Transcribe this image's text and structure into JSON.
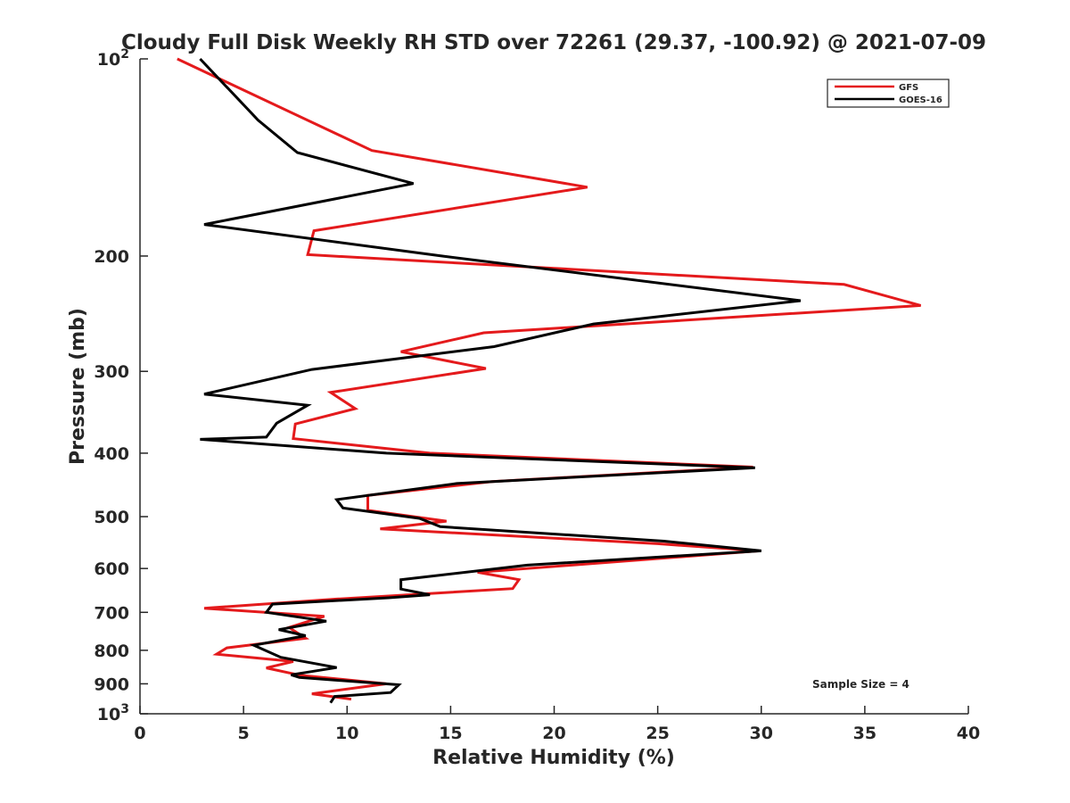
{
  "chart_data": {
    "type": "line",
    "title": "Cloudy Full Disk Weekly RH STD over 72261 (29.37, -100.92) @ 2021-07-09",
    "xlabel": "Relative Humidity (%)",
    "ylabel": "Pressure (mb)",
    "xlim": [
      0,
      40
    ],
    "ylim": [
      100,
      1000
    ],
    "y_scale": "log",
    "y_reversed": true,
    "grid": false,
    "legend_position": "top-right",
    "x_ticks": [
      0,
      5,
      10,
      15,
      20,
      25,
      30,
      35,
      40
    ],
    "y_ticks": [
      {
        "value": 100,
        "base": "10",
        "exp": "2"
      },
      {
        "value": 200,
        "label": "200"
      },
      {
        "value": 300,
        "label": "300"
      },
      {
        "value": 400,
        "label": "400"
      },
      {
        "value": 500,
        "label": "500"
      },
      {
        "value": 600,
        "label": "600"
      },
      {
        "value": 700,
        "label": "700"
      },
      {
        "value": 800,
        "label": "800"
      },
      {
        "value": 900,
        "label": "900"
      },
      {
        "value": 1000,
        "base": "10",
        "exp": "3"
      }
    ],
    "annotation": "Sample Size = 4",
    "series": [
      {
        "name": "GFS",
        "color": "#e41a1c",
        "x": [
          1.8,
          11.2,
          21.6,
          8.4,
          8.1,
          34.0,
          37.7,
          16.6,
          12.6,
          16.7,
          9.2,
          10.4,
          7.5,
          7.4,
          14.0,
          29.6,
          17.0,
          11.0,
          11.0,
          14.8,
          11.6,
          25.0,
          29.9,
          16.3,
          18.3,
          18.0,
          9.5,
          3.1,
          8.9,
          7.2,
          8.0,
          4.2,
          3.7,
          7.4,
          6.1,
          7.7,
          11.9,
          8.3,
          10.2
        ],
        "y": [
          100,
          138,
          157,
          183,
          199,
          221,
          238,
          262,
          280,
          297,
          323,
          342,
          361,
          380,
          400,
          420,
          442,
          464,
          489,
          508,
          522,
          550,
          564,
          608,
          624,
          644,
          668,
          690,
          710,
          738,
          767,
          793,
          811,
          832,
          851,
          873,
          900,
          932,
          950
        ]
      },
      {
        "name": "GOES-16",
        "color": "#000000",
        "x": [
          2.9,
          5.7,
          7.6,
          13.2,
          3.1,
          14.6,
          31.9,
          21.9,
          17.1,
          8.3,
          3.1,
          8.1,
          6.6,
          6.1,
          2.9,
          11.9,
          29.7,
          15.3,
          9.5,
          9.8,
          13.5,
          14.5,
          25.3,
          30.0,
          18.7,
          12.6,
          12.6,
          14.0,
          12.0,
          6.4,
          6.1,
          9.0,
          6.7,
          8.0,
          5.5,
          6.8,
          9.5,
          7.3,
          7.7,
          12.5,
          12.1,
          9.4,
          9.2
        ],
        "y": [
          100,
          124,
          139,
          155,
          179,
          200,
          234,
          254,
          275,
          298,
          325,
          338,
          360,
          378,
          381,
          400,
          421,
          445,
          471,
          485,
          503,
          518,
          545,
          564,
          593,
          624,
          645,
          658,
          665,
          680,
          700,
          722,
          744,
          760,
          786,
          820,
          850,
          872,
          880,
          903,
          928,
          941,
          962
        ]
      }
    ]
  }
}
